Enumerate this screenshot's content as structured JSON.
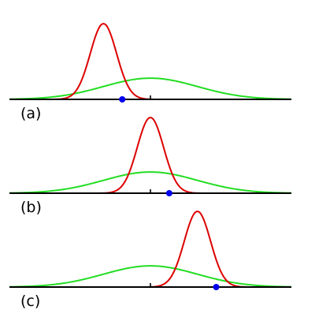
{
  "chart_data": {
    "type": "line",
    "title": "",
    "xlabel": "",
    "ylabel": "",
    "grid": false,
    "legend": "none",
    "xlim": [
      -3,
      3
    ],
    "colors": {
      "axis": "#000000",
      "narrow_curve": "#dd0000",
      "wide_curve": "#22dd22",
      "observation": "#0000ee"
    },
    "wide_curve": {
      "mean": 0.0,
      "sd": 1.0,
      "peak": 0.28
    },
    "panels": [
      {
        "label": "(a)",
        "narrow_mean": -1.0,
        "narrow_sd": 0.28,
        "narrow_peak": 1.0,
        "observation_x": -0.6
      },
      {
        "label": "(b)",
        "narrow_mean": 0.0,
        "narrow_sd": 0.28,
        "narrow_peak": 1.0,
        "observation_x": 0.4
      },
      {
        "label": "(c)",
        "narrow_mean": 1.0,
        "narrow_sd": 0.28,
        "narrow_peak": 1.0,
        "observation_x": 1.4
      }
    ]
  }
}
